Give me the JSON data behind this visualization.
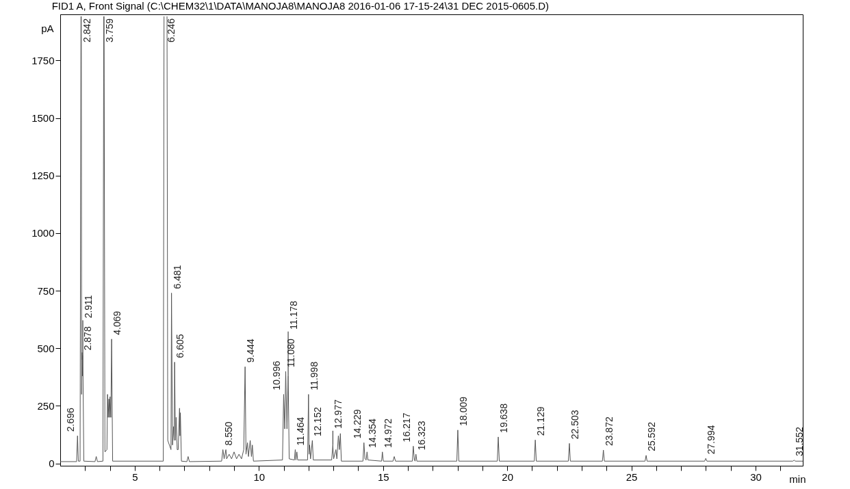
{
  "chart_data": {
    "type": "line",
    "title": "FID1 A, Front Signal (C:\\CHEM32\\1\\DATA\\MANOJA8\\MANOJA8 2016-01-06 17-15-24\\31 DEC 2015-0605.D)",
    "xlabel": "min",
    "ylabel": "pA",
    "xlim": [
      2.0,
      31.9
    ],
    "ylim": [
      -10,
      1950
    ],
    "xticks": [
      {
        "value": 3,
        "label": null
      },
      {
        "value": 4,
        "label": null
      },
      5,
      {
        "value": 6,
        "label": null
      },
      {
        "value": 7,
        "label": null
      },
      {
        "value": 8,
        "label": null
      },
      {
        "value": 9,
        "label": null
      },
      10,
      {
        "value": 11,
        "label": null
      },
      {
        "value": 12,
        "label": null
      },
      {
        "value": 13,
        "label": null
      },
      {
        "value": 14,
        "label": null
      },
      15,
      {
        "value": 16,
        "label": null
      },
      {
        "value": 17,
        "label": null
      },
      {
        "value": 18,
        "label": null
      },
      {
        "value": 19,
        "label": null
      },
      20,
      {
        "value": 21,
        "label": null
      },
      {
        "value": 22,
        "label": null
      },
      {
        "value": 23,
        "label": null
      },
      {
        "value": 24,
        "label": null
      },
      25,
      {
        "value": 26,
        "label": null
      },
      {
        "value": 27,
        "label": null
      },
      {
        "value": 28,
        "label": null
      },
      {
        "value": 29,
        "label": null
      },
      30,
      {
        "value": 31,
        "label": null
      }
    ],
    "yticks": [
      0,
      250,
      500,
      750,
      1000,
      1250,
      1500,
      1750
    ],
    "grid": false,
    "legend": false,
    "marker": "none",
    "line_style": "solid",
    "series": [
      {
        "color": "#555555",
        "x": [
          2.0,
          2.66,
          2.696,
          2.73,
          2.8,
          2.835,
          2.842,
          2.849,
          2.862,
          2.878,
          2.894,
          2.911,
          2.95,
          3.4,
          3.45,
          3.5,
          3.72,
          3.752,
          3.759,
          3.766,
          3.8,
          3.88,
          3.904,
          3.93,
          3.962,
          3.985,
          4.006,
          4.04,
          4.069,
          4.11,
          6.15,
          6.18,
          6.246,
          6.3,
          6.33,
          6.46,
          6.481,
          6.52,
          6.563,
          6.59,
          6.605,
          6.64,
          6.667,
          6.71,
          6.75,
          6.805,
          6.82,
          6.838,
          6.88,
          7.1,
          7.15,
          7.2,
          8.5,
          8.55,
          8.6,
          8.671,
          8.7,
          8.8,
          8.9,
          9.0,
          9.1,
          9.2,
          9.3,
          9.39,
          9.444,
          9.48,
          9.54,
          9.58,
          9.65,
          9.7,
          9.736,
          9.78,
          10.95,
          10.996,
          11.04,
          11.08,
          11.13,
          11.178,
          11.22,
          11.43,
          11.464,
          11.49,
          11.529,
          11.56,
          11.96,
          11.998,
          12.02,
          12.044,
          12.08,
          12.152,
          12.19,
          12.93,
          12.977,
          13.01,
          13.1,
          13.14,
          13.2,
          13.24,
          13.28,
          13.32,
          14.19,
          14.229,
          14.27,
          14.32,
          14.354,
          14.39,
          14.94,
          14.972,
          15.01,
          15.4,
          15.45,
          15.5,
          16.18,
          16.217,
          16.26,
          16.29,
          16.323,
          16.36,
          17.97,
          18.009,
          18.05,
          19.6,
          19.638,
          19.68,
          21.09,
          21.129,
          21.17,
          22.46,
          22.503,
          22.54,
          23.83,
          23.872,
          23.91,
          25.55,
          25.592,
          25.63,
          27.95,
          27.994,
          28.04,
          31.5,
          31.552,
          31.6,
          31.9
        ],
        "values": [
          8,
          8,
          120,
          10,
          10,
          1940,
          null,
          1940,
          300,
          450,
          380,
          470,
          10,
          8,
          30,
          8,
          10,
          1940,
          null,
          1940,
          50,
          60,
          300,
          200,
          280,
          200,
          290,
          200,
          540,
          10,
          10,
          1940,
          null,
          1940,
          100,
          60,
          740,
          80,
          160,
          100,
          440,
          100,
          200,
          60,
          60,
          240,
          120,
          220,
          10,
          8,
          30,
          8,
          10,
          60,
          20,
          60,
          20,
          40,
          20,
          50,
          20,
          40,
          20,
          60,
          420,
          40,
          90,
          30,
          100,
          30,
          80,
          10,
          15,
          300,
          150,
          400,
          150,
          380,
          20,
          15,
          60,
          15,
          50,
          15,
          15,
          300,
          40,
          80,
          20,
          100,
          15,
          15,
          80,
          20,
          60,
          20,
          120,
          60,
          130,
          10,
          10,
          90,
          20,
          15,
          50,
          15,
          10,
          50,
          10,
          10,
          30,
          10,
          10,
          75,
          15,
          10,
          40,
          10,
          10,
          145,
          10,
          10,
          115,
          10,
          10,
          102,
          10,
          10,
          87,
          10,
          10,
          58,
          10,
          10,
          35,
          10,
          10,
          22,
          10,
          10,
          14,
          10,
          10
        ]
      }
    ],
    "annotations": [
      {
        "text": "2.696",
        "x": 2.696,
        "y": 120
      },
      {
        "text": "2.842",
        "x": 2.842
      },
      {
        "text": "2.878",
        "x": 2.878,
        "y": 450
      },
      {
        "text": "2.911",
        "x": 2.911,
        "y": 470
      },
      {
        "text": "3.759",
        "x": 3.759
      },
      {
        "text": "4.069",
        "x": 4.069,
        "y": 540
      },
      {
        "text": "6.246",
        "x": 6.246
      },
      {
        "text": "6.481",
        "x": 6.481,
        "y": 740
      },
      {
        "text": "6.605",
        "x": 6.605,
        "y": 440
      },
      {
        "text": "8.550",
        "x": 8.55,
        "y": 60
      },
      {
        "text": "9.444",
        "x": 9.444,
        "y": 420
      },
      {
        "text": "10.996",
        "x": 10.996,
        "y": 300
      },
      {
        "text": "11.080",
        "x": 11.08,
        "y": 400
      },
      {
        "text": "11.178",
        "x": 11.178,
        "y": 380
      },
      {
        "text": "11.464",
        "x": 11.464,
        "y": 60
      },
      {
        "text": "11.998",
        "x": 11.998,
        "y": 300
      },
      {
        "text": "12.152",
        "x": 12.152,
        "y": 100
      },
      {
        "text": "12.977",
        "x": 12.977,
        "y": 80
      },
      {
        "text": "14.229",
        "x": 14.229,
        "y": 90
      },
      {
        "text": "14.354",
        "x": 14.354,
        "y": 50
      },
      {
        "text": "14.972",
        "x": 14.972,
        "y": 50
      },
      {
        "text": "16.217",
        "x": 16.217,
        "y": 75
      },
      {
        "text": "16.323",
        "x": 16.323,
        "y": 40
      },
      {
        "text": "18.009",
        "x": 18.009,
        "y": 145
      },
      {
        "text": "19.638",
        "x": 19.638,
        "y": 115
      },
      {
        "text": "21.129",
        "x": 21.129,
        "y": 102
      },
      {
        "text": "22.503",
        "x": 22.503,
        "y": 87
      },
      {
        "text": "23.872",
        "x": 23.872,
        "y": 58
      },
      {
        "text": "25.592",
        "x": 25.592,
        "y": 35
      },
      {
        "text": "27.994",
        "x": 27.994,
        "y": 22
      },
      {
        "text": "31.552",
        "x": 31.552,
        "y": 14
      }
    ]
  }
}
